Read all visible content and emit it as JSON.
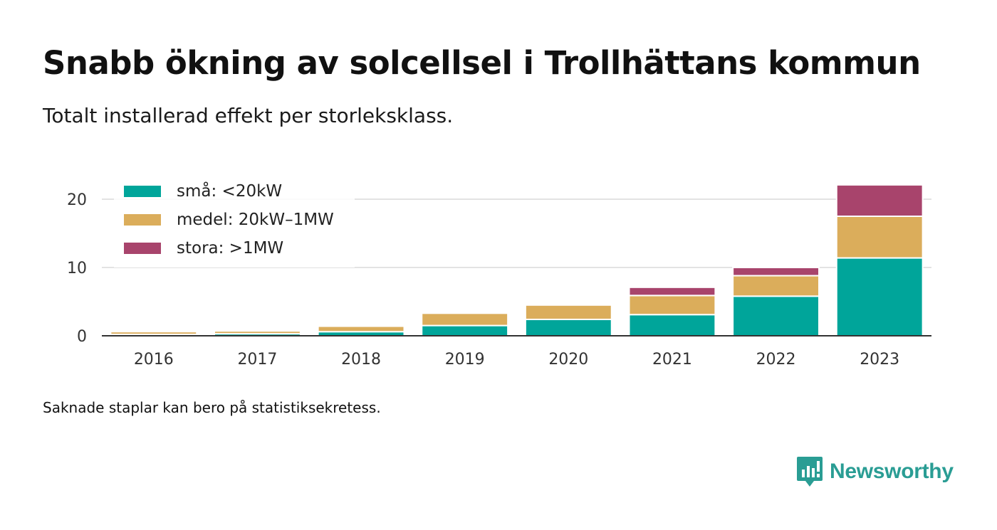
{
  "title": "Snabb ökning av solcellsel i Trollhättans kommun",
  "subtitle": "Totalt installerad effekt per storleksklass.",
  "footnote": "Saknade staplar kan bero på statistiksekretess.",
  "brand": {
    "name": "Newsworthy",
    "icon": "newsworthy-logo-icon",
    "color": "#2a9d94"
  },
  "chart_data": {
    "type": "bar",
    "stacked": true,
    "categories": [
      "2016",
      "2017",
      "2018",
      "2019",
      "2020",
      "2021",
      "2022",
      "2023"
    ],
    "series": [
      {
        "name": "små: <20kW",
        "color": "#00a59a",
        "values": [
          0.2,
          0.3,
          0.6,
          1.5,
          2.4,
          3.1,
          5.8,
          11.4
        ]
      },
      {
        "name": "medel: 20kW–1MW",
        "color": "#dbad5b",
        "values": [
          0.4,
          0.4,
          0.8,
          1.8,
          2.1,
          2.8,
          3.0,
          6.1
        ]
      },
      {
        "name": "stora: >1MW",
        "color": "#a8446c",
        "values": [
          0,
          0,
          0,
          0,
          0,
          1.2,
          1.2,
          4.6
        ]
      }
    ],
    "yticks": [
      0,
      10,
      20
    ],
    "ylim": [
      0,
      22
    ],
    "xlabel": "",
    "ylabel": "",
    "grid": true,
    "legend": "top-left"
  }
}
